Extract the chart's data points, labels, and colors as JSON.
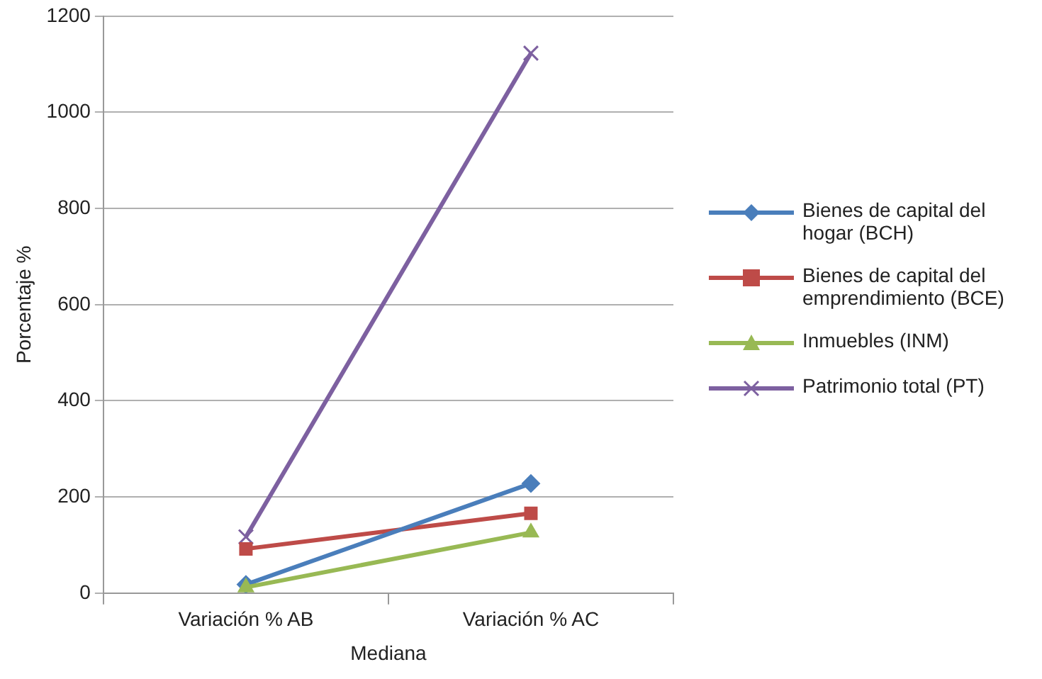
{
  "chart_data": {
    "type": "line",
    "xlabel": "Mediana",
    "ylabel": "Porcentaje %",
    "categories": [
      "Variación % AB",
      "Variación % AC"
    ],
    "series": [
      {
        "name": "Bienes de capital del hogar (BCH)",
        "color": "#4a7ebb",
        "marker": "diamond",
        "values": [
          18,
          228
        ]
      },
      {
        "name": "Bienes de capital del emprendimiento (BCE)",
        "color": "#be4b48",
        "marker": "square",
        "values": [
          92,
          166
        ]
      },
      {
        "name": "Inmuebles (INM)",
        "color": "#98b954",
        "marker": "triangle",
        "values": [
          12,
          126
        ]
      },
      {
        "name": "Patrimonio total (PT)",
        "color": "#7d60a0",
        "marker": "cross",
        "values": [
          117,
          1123
        ]
      }
    ],
    "ylim": [
      0,
      1200
    ],
    "yticks": [
      0,
      200,
      400,
      600,
      800,
      1000,
      1200
    ],
    "grid": "y",
    "legend": "right"
  }
}
